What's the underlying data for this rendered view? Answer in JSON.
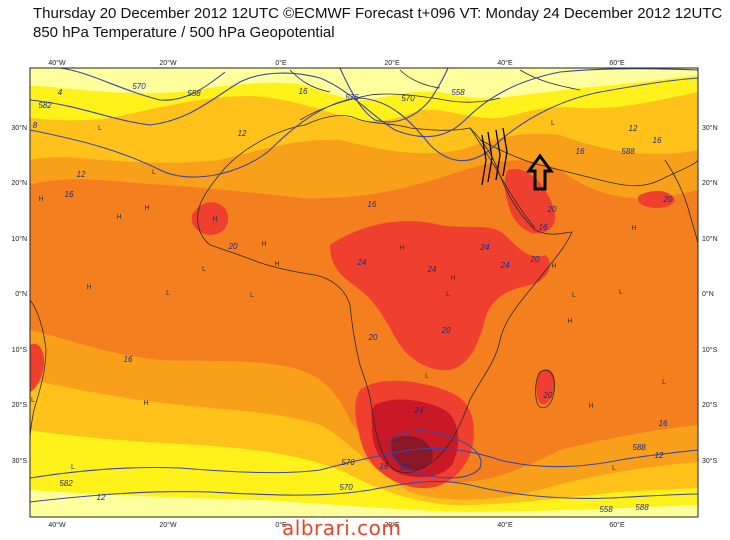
{
  "header": {
    "line1": "Thursday 20 December 2012 12UTC ©ECMWF Forecast t+096 VT: Monday 24 December 2012 12UTC",
    "line2": "850 hPa Temperature / 500 hPa Geopotential"
  },
  "axes": {
    "lon_top": [
      "40°W",
      "20°W",
      "0°E",
      "20°E",
      "40°E",
      "60°E"
    ],
    "lon_bottom": [
      "40°W",
      "20°W",
      "0°E",
      "20°E",
      "40°E",
      "60°E"
    ],
    "lat": [
      "30°N",
      "20°N",
      "10°N",
      "0°N",
      "10°S",
      "20°S",
      "30°S"
    ]
  },
  "contour_labels": {
    "temperature": [
      "4",
      "8",
      "12",
      "16",
      "16",
      "16",
      "16",
      "16",
      "16",
      "12",
      "12",
      "12",
      "16",
      "20",
      "20",
      "20",
      "20",
      "20",
      "20",
      "24",
      "24",
      "24",
      "24",
      "24",
      "20",
      "20",
      "12",
      "16",
      "16"
    ],
    "geopotential": [
      "582",
      "570",
      "558",
      "576",
      "558",
      "588",
      "570",
      "582",
      "576",
      "588",
      "570",
      "588",
      "558"
    ]
  },
  "pressure_centers": {
    "high": "H",
    "low": "L"
  },
  "colors": {
    "pale_yellow": "#ffff9e",
    "yellow": "#fff21a",
    "light_orange": "#ffc21a",
    "orange": "#f9a01b",
    "dark_orange": "#f47f1f",
    "red": "#ef3f2e",
    "deep_red": "#c91927",
    "darkest": "#8a1726",
    "geopotential_line": "#3b46a8",
    "annotation_arrow": "#000000",
    "watermark": "#e2472a"
  },
  "annotation": {
    "icon": "up-arrow-icon"
  },
  "watermark": "albrari.com"
}
